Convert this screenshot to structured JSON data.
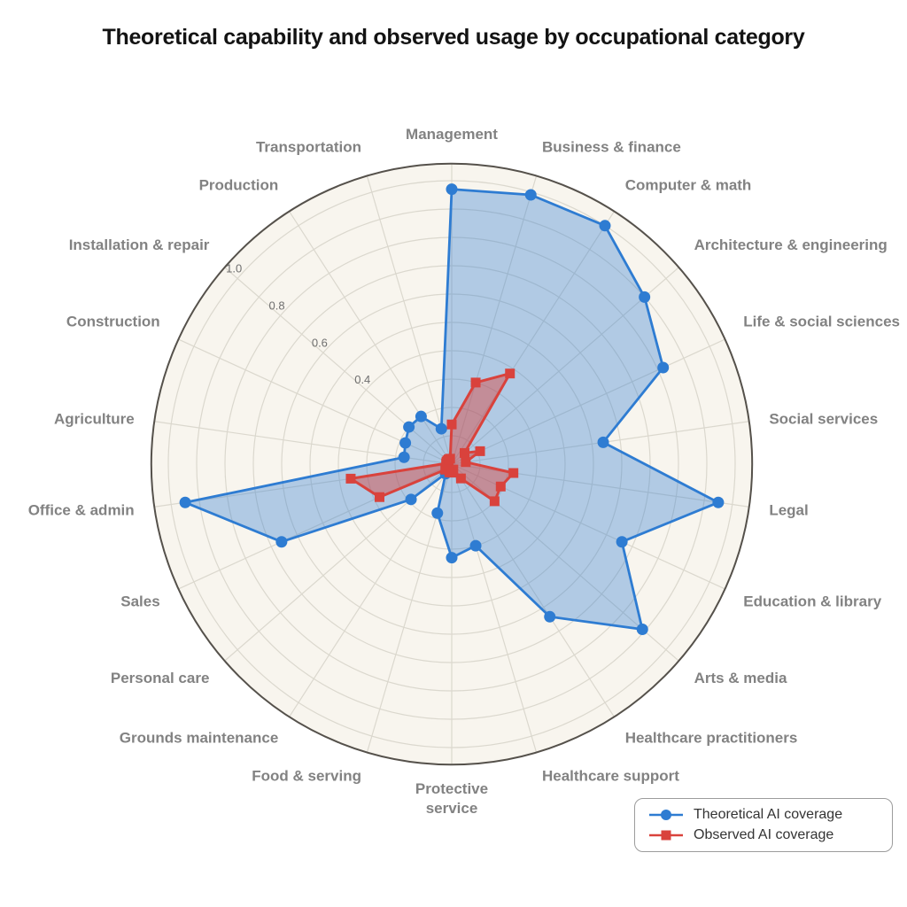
{
  "title": "Theoretical capability and observed usage by occupational category",
  "chart_data": {
    "type": "radar",
    "categories": [
      "Management",
      "Business & finance",
      "Computer & math",
      "Architecture & engineering",
      "Life & social sciences",
      "Social services",
      "Legal",
      "Education & library",
      "Arts & media",
      "Healthcare practitioners",
      "Healthcare support",
      "Protective\nservice",
      "Food & serving",
      "Grounds maintenance",
      "Personal care",
      "Sales",
      "Office & admin",
      "Agriculture",
      "Construction",
      "Installation & repair",
      "Production",
      "Transportation"
    ],
    "series": [
      {
        "name": "Theoretical AI coverage",
        "marker": "circle",
        "color": "#2E7CD2",
        "fill": "rgba(46,124,210,0.35)",
        "values": [
          0.97,
          0.99,
          1.0,
          0.9,
          0.82,
          0.54,
          0.95,
          0.66,
          0.89,
          0.64,
          0.3,
          0.33,
          0.18,
          0.04,
          0.19,
          0.66,
          0.95,
          0.17,
          0.18,
          0.2,
          0.2,
          0.13
        ]
      },
      {
        "name": "Observed AI coverage",
        "marker": "square",
        "color": "#D9423C",
        "fill": "rgba(217,66,60,0.45)",
        "values": [
          0.14,
          0.3,
          0.38,
          0.06,
          0.11,
          0.05,
          0.22,
          0.19,
          0.2,
          0.06,
          0.02,
          0.03,
          0.03,
          0.02,
          0.03,
          0.28,
          0.36,
          0.02,
          0.02,
          0.02,
          0.02,
          0.02
        ]
      }
    ],
    "radial_ticks": [
      "0.4",
      "0.6",
      "0.8",
      "1.0"
    ],
    "grid_step": 0.1,
    "range": [
      0,
      1.06
    ],
    "start_angle_deg": 90,
    "direction": "clockwise",
    "tick_axis_index": 19,
    "legend_position": "bottom-right",
    "grid": true
  },
  "colors": {
    "disc_fill": "#F8F5EE",
    "grid_line": "#DBD8CE",
    "outer_circle": "#55514B",
    "category_label": "#828282",
    "tick_label": "#6F6F6F",
    "title": "#131313",
    "legend_border": "#9C9C9C",
    "legend_text": "#333333",
    "page_background": "#FFFFFF"
  }
}
